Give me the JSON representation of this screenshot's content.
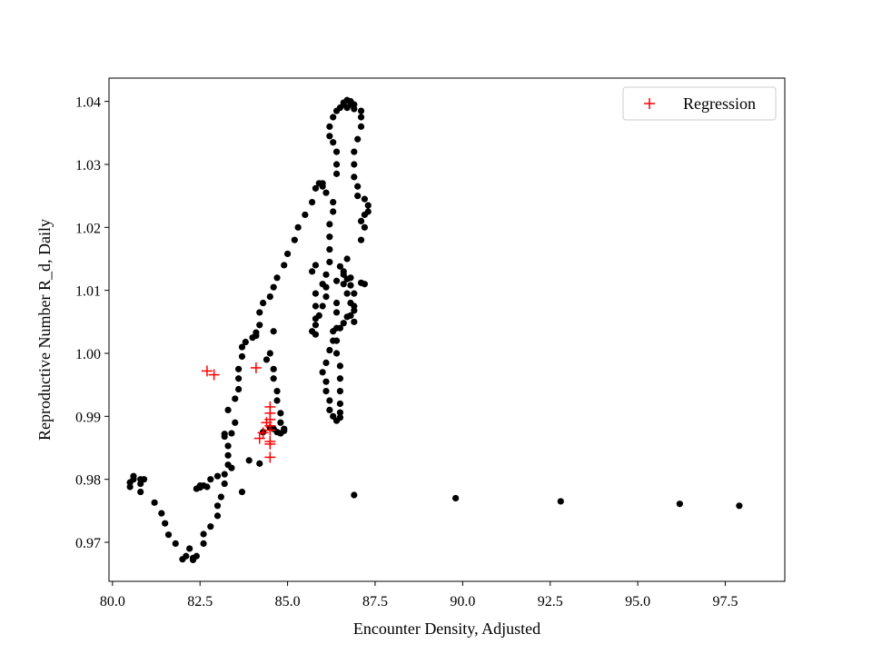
{
  "chart_data": {
    "type": "scatter",
    "title": "",
    "xlabel": "Encounter Density, Adjusted",
    "ylabel": "Reproductive Number R_d, Daily",
    "xlim": [
      79.9,
      99.2
    ],
    "ylim": [
      0.9638,
      1.0437
    ],
    "xticks": [
      80.0,
      82.5,
      85.0,
      87.5,
      90.0,
      92.5,
      95.0,
      97.5
    ],
    "xtick_labels": [
      "80.0",
      "82.5",
      "85.0",
      "87.5",
      "90.0",
      "92.5",
      "95.0",
      "97.5"
    ],
    "yticks": [
      0.97,
      0.98,
      0.99,
      1.0,
      1.01,
      1.02,
      1.03,
      1.04
    ],
    "ytick_labels": [
      "0.97",
      "0.98",
      "0.99",
      "1.00",
      "1.01",
      "1.02",
      "1.03",
      "1.04"
    ],
    "grid": false,
    "legend": {
      "position": "top-right",
      "entries": [
        "Regression"
      ]
    },
    "series": [
      {
        "marker": "dot",
        "color": "#000000",
        "points": [
          [
            80.5,
            0.9788
          ],
          [
            80.5,
            0.9795
          ],
          [
            80.6,
            0.98
          ],
          [
            80.6,
            0.9805
          ],
          [
            80.8,
            0.98
          ],
          [
            80.8,
            0.9793
          ],
          [
            80.9,
            0.98
          ],
          [
            80.8,
            0.978
          ],
          [
            81.2,
            0.9763
          ],
          [
            81.4,
            0.9746
          ],
          [
            81.5,
            0.973
          ],
          [
            81.6,
            0.9712
          ],
          [
            81.8,
            0.9698
          ],
          [
            82.0,
            0.9673
          ],
          [
            82.1,
            0.9678
          ],
          [
            82.2,
            0.969
          ],
          [
            82.3,
            0.9675
          ],
          [
            82.3,
            0.9672
          ],
          [
            82.4,
            0.9678
          ],
          [
            82.6,
            0.9698
          ],
          [
            82.6,
            0.9713
          ],
          [
            82.8,
            0.9725
          ],
          [
            83.0,
            0.9742
          ],
          [
            83.0,
            0.9758
          ],
          [
            83.1,
            0.9772
          ],
          [
            83.2,
            0.9793
          ],
          [
            83.2,
            0.9808
          ],
          [
            83.3,
            0.9823
          ],
          [
            83.3,
            0.9838
          ],
          [
            83.3,
            0.9853
          ],
          [
            83.2,
            0.9868
          ],
          [
            83.2,
            0.9872
          ],
          [
            83.4,
            0.9873
          ],
          [
            83.5,
            0.989
          ],
          [
            83.3,
            0.991
          ],
          [
            83.5,
            0.9928
          ],
          [
            83.6,
            0.9943
          ],
          [
            83.6,
            0.996
          ],
          [
            83.6,
            0.9975
          ],
          [
            83.7,
            0.9995
          ],
          [
            83.7,
            1.001
          ],
          [
            83.8,
            1.0018
          ],
          [
            84.0,
            1.0025
          ],
          [
            84.1,
            1.0033
          ],
          [
            84.1,
            1.0028
          ],
          [
            84.2,
            1.0045
          ],
          [
            84.2,
            1.0065
          ],
          [
            84.3,
            1.008
          ],
          [
            84.5,
            1.009
          ],
          [
            84.6,
            1.0105
          ],
          [
            84.7,
            1.012
          ],
          [
            84.9,
            1.014
          ],
          [
            85.0,
            1.0158
          ],
          [
            85.2,
            1.018
          ],
          [
            85.3,
            1.02
          ],
          [
            85.5,
            1.022
          ],
          [
            85.7,
            1.024
          ],
          [
            85.8,
            1.0262
          ],
          [
            85.9,
            1.027
          ],
          [
            86.0,
            1.027
          ],
          [
            86.0,
            1.0265
          ],
          [
            86.1,
            1.0255
          ],
          [
            86.3,
            1.024
          ],
          [
            86.3,
            1.0225
          ],
          [
            86.2,
            1.0205
          ],
          [
            86.2,
            1.0185
          ],
          [
            86.2,
            1.0165
          ],
          [
            86.2,
            1.0145
          ],
          [
            86.1,
            1.0125
          ],
          [
            86.1,
            1.0105
          ],
          [
            86.1,
            1.009
          ],
          [
            86.0,
            1.0075
          ],
          [
            85.9,
            1.006
          ],
          [
            85.8,
            1.0045
          ],
          [
            85.7,
            1.0035
          ],
          [
            85.8,
            1.003
          ],
          [
            85.8,
            1.0055
          ],
          [
            85.8,
            1.0075
          ],
          [
            85.8,
            1.0095
          ],
          [
            86.0,
            1.011
          ],
          [
            85.7,
            1.013
          ],
          [
            85.8,
            1.014
          ],
          [
            86.4,
            1.004
          ],
          [
            86.3,
            1.002
          ],
          [
            86.2,
            1.0005
          ],
          [
            86.1,
            0.9985
          ],
          [
            86.0,
            0.997
          ],
          [
            86.1,
            0.9955
          ],
          [
            86.1,
            0.994
          ],
          [
            86.2,
            0.9925
          ],
          [
            86.2,
            0.991
          ],
          [
            86.3,
            0.99
          ],
          [
            86.4,
            0.9893
          ],
          [
            86.5,
            0.9898
          ],
          [
            86.5,
            0.9906
          ],
          [
            86.5,
            0.992
          ],
          [
            86.5,
            0.994
          ],
          [
            86.5,
            0.996
          ],
          [
            86.5,
            0.998
          ],
          [
            86.4,
            1.0
          ],
          [
            86.4,
            1.002
          ],
          [
            86.3,
            1.0035
          ],
          [
            86.5,
            1.004
          ],
          [
            86.6,
            1.0048
          ],
          [
            86.7,
            1.0058
          ],
          [
            86.8,
            1.006
          ],
          [
            86.9,
            1.0068
          ],
          [
            86.8,
            1.008
          ],
          [
            86.7,
            1.0095
          ],
          [
            86.6,
            1.011
          ],
          [
            86.6,
            1.0125
          ],
          [
            86.5,
            1.0138
          ],
          [
            86.6,
            1.013
          ],
          [
            86.7,
            1.0118
          ],
          [
            86.8,
            1.0108
          ],
          [
            86.9,
            1.0095
          ],
          [
            86.8,
            1.012
          ],
          [
            87.1,
            1.0112
          ],
          [
            87.2,
            1.011
          ],
          [
            87.1,
            1.018
          ],
          [
            87.2,
            1.02
          ],
          [
            87.2,
            1.022
          ],
          [
            87.3,
            1.0225
          ],
          [
            87.3,
            1.0235
          ],
          [
            87.2,
            1.0245
          ],
          [
            87.1,
            1.021
          ],
          [
            87.0,
            1.025
          ],
          [
            87.0,
            1.0265
          ],
          [
            86.9,
            1.028
          ],
          [
            86.9,
            1.03
          ],
          [
            86.9,
            1.032
          ],
          [
            87.0,
            1.034
          ],
          [
            87.1,
            1.036
          ],
          [
            87.1,
            1.0375
          ],
          [
            87.1,
            1.0385
          ],
          [
            86.9,
            1.0395
          ],
          [
            86.8,
            1.04
          ],
          [
            86.7,
            1.0402
          ],
          [
            86.6,
            1.0398
          ],
          [
            86.5,
            1.039
          ],
          [
            86.4,
            1.0385
          ],
          [
            86.3,
            1.0375
          ],
          [
            86.2,
            1.036
          ],
          [
            86.2,
            1.0345
          ],
          [
            86.3,
            1.0335
          ],
          [
            86.4,
            1.032
          ],
          [
            86.4,
            1.03
          ],
          [
            86.4,
            1.0285
          ],
          [
            86.6,
            1.0395
          ],
          [
            86.7,
            1.039
          ],
          [
            86.8,
            1.0395
          ],
          [
            86.9,
            1.0388
          ],
          [
            86.4,
            1.008
          ],
          [
            86.4,
            1.0115
          ],
          [
            86.4,
            1.0065
          ],
          [
            86.9,
            1.005
          ],
          [
            86.9,
            1.0075
          ],
          [
            86.7,
            1.015
          ],
          [
            84.6,
            1.0035
          ],
          [
            84.5,
            1.0
          ],
          [
            84.4,
            0.999
          ],
          [
            84.6,
            0.9975
          ],
          [
            84.6,
            0.996
          ],
          [
            84.7,
            0.994
          ],
          [
            84.7,
            0.9925
          ],
          [
            84.8,
            0.9905
          ],
          [
            84.8,
            0.989
          ],
          [
            84.9,
            0.988
          ],
          [
            84.9,
            0.9877
          ],
          [
            84.8,
            0.9873
          ],
          [
            84.7,
            0.9875
          ],
          [
            84.6,
            0.988
          ],
          [
            84.5,
            0.9882
          ],
          [
            84.3,
            0.9875
          ],
          [
            84.2,
            0.9825
          ],
          [
            83.9,
            0.983
          ],
          [
            83.4,
            0.9818
          ],
          [
            83.0,
            0.9805
          ],
          [
            82.8,
            0.98
          ],
          [
            82.7,
            0.9788
          ],
          [
            82.5,
            0.9787
          ],
          [
            82.6,
            0.979
          ],
          [
            82.4,
            0.9785
          ],
          [
            82.5,
            0.979
          ],
          [
            83.7,
            0.978
          ],
          [
            86.9,
            0.9775
          ],
          [
            89.8,
            0.977
          ],
          [
            92.8,
            0.9765
          ],
          [
            96.2,
            0.9761
          ],
          [
            97.9,
            0.9758
          ]
        ]
      },
      {
        "name": "Regression",
        "marker": "plus",
        "color": "#ff0000",
        "points": [
          [
            82.7,
            0.9972
          ],
          [
            82.9,
            0.9966
          ],
          [
            84.1,
            0.9977
          ],
          [
            84.5,
            0.9915
          ],
          [
            84.5,
            0.9905
          ],
          [
            84.5,
            0.9895
          ],
          [
            84.4,
            0.989
          ],
          [
            84.5,
            0.9885
          ],
          [
            84.5,
            0.9878
          ],
          [
            84.3,
            0.9874
          ],
          [
            84.2,
            0.9865
          ],
          [
            84.5,
            0.986
          ],
          [
            84.5,
            0.9856
          ],
          [
            84.5,
            0.9835
          ]
        ]
      }
    ]
  }
}
